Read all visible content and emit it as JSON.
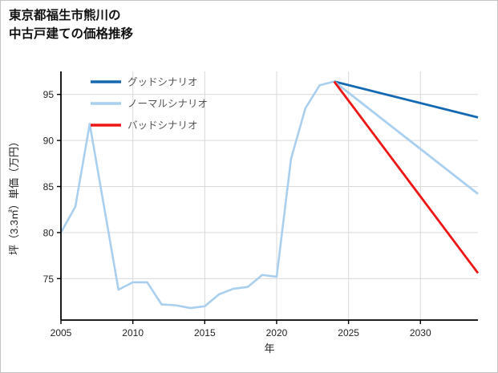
{
  "title": {
    "line1": "東京都福生市熊川の",
    "line2": "中古戸建ての価格推移"
  },
  "chart_data": {
    "type": "line",
    "title": "東京都福生市熊川の中古戸建ての価格推移",
    "xlabel": "年",
    "ylabel": "坪（3.3㎡）単価（万円）",
    "xlim": [
      2005,
      2034
    ],
    "ylim": [
      70.5,
      97.5
    ],
    "xticks": [
      "2005",
      "2010",
      "2015",
      "2020",
      "2025",
      "2030"
    ],
    "xtick_values": [
      2005,
      2010,
      2015,
      2020,
      2025,
      2030
    ],
    "yticks": [
      "75",
      "80",
      "85",
      "90",
      "95"
    ],
    "ytick_values": [
      75,
      80,
      85,
      90,
      95
    ],
    "grid": true,
    "colors": {
      "history": "#a9cfef",
      "good": "#1469b0",
      "normal": "#a9cfef",
      "bad": "#ee1515",
      "grid": "#d9d9d9",
      "axis": "#000000"
    },
    "history": {
      "x": [
        2005,
        2006,
        2007,
        2008,
        2009,
        2010,
        2011,
        2012,
        2013,
        2014,
        2015,
        2016,
        2017,
        2018,
        2019,
        2020,
        2021,
        2022,
        2023,
        2024
      ],
      "y": [
        80.0,
        82.8,
        91.8,
        82.8,
        73.8,
        74.6,
        74.6,
        72.2,
        72.1,
        71.8,
        72.0,
        73.3,
        73.9,
        74.1,
        75.4,
        75.2,
        88.0,
        93.5,
        96.0,
        96.4
      ]
    },
    "scenarios": [
      {
        "key": "good",
        "label": "グッドシナリオ",
        "x": [
          2024,
          2034
        ],
        "y": [
          96.4,
          92.5
        ]
      },
      {
        "key": "normal",
        "label": "ノーマルシナリオ",
        "x": [
          2024,
          2034
        ],
        "y": [
          96.4,
          84.2
        ]
      },
      {
        "key": "bad",
        "label": "バッドシナリオ",
        "x": [
          2024,
          2034
        ],
        "y": [
          96.4,
          75.6
        ]
      }
    ],
    "legend": {
      "position": "upper-left",
      "frame": false,
      "entries": [
        {
          "label": "グッドシナリオ",
          "color_key": "good"
        },
        {
          "label": "ノーマルシナリオ",
          "color_key": "normal"
        },
        {
          "label": "バッドシナリオ",
          "color_key": "bad"
        }
      ]
    }
  }
}
